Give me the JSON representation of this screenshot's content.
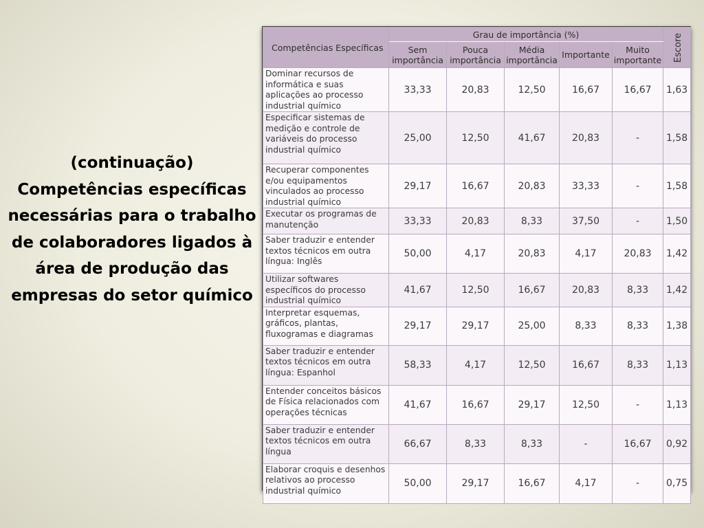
{
  "caption": {
    "continuation": "(continuação)",
    "title": "Competências específicas necessárias para o trabalho de colaboradores ligados à área de produção das empresas do setor químico"
  },
  "table": {
    "header": {
      "competencies": "Competências Específicas",
      "group": "Grau de importância (%)",
      "score": "Escore",
      "levels": [
        "Sem importância",
        "Pouca importância",
        "Média importância",
        "Importante",
        "Muito importante"
      ]
    },
    "rows": [
      {
        "label": "Dominar recursos de informática e suas aplicações ao processo industrial químico",
        "values": [
          "33,33",
          "20,83",
          "12,50",
          "16,67",
          "16,67"
        ],
        "score": "1,63"
      },
      {
        "label": "Especificar sistemas de medição e controle de variáveis do processo industrial químico",
        "values": [
          "25,00",
          "12,50",
          "41,67",
          "20,83",
          "-"
        ],
        "score": "1,58"
      },
      {
        "label": "Recuperar componentes e/ou equipamentos vinculados ao processo industrial químico",
        "values": [
          "29,17",
          "16,67",
          "20,83",
          "33,33",
          "-"
        ],
        "score": "1,58"
      },
      {
        "label": "Executar os programas de manutenção",
        "values": [
          "33,33",
          "20,83",
          "8,33",
          "37,50",
          "-"
        ],
        "score": "1,50"
      },
      {
        "label": "Saber traduzir e entender textos técnicos em outra língua: Inglês",
        "values": [
          "50,00",
          "4,17",
          "20,83",
          "4,17",
          "20,83"
        ],
        "score": "1,42"
      },
      {
        "label": "Utilizar softwares específicos do processo industrial químico",
        "values": [
          "41,67",
          "12,50",
          "16,67",
          "20,83",
          "8,33"
        ],
        "score": "1,42"
      },
      {
        "label": "Interpretar esquemas, gráficos, plantas, fluxogramas e diagramas",
        "values": [
          "29,17",
          "29,17",
          "25,00",
          "8,33",
          "8,33"
        ],
        "score": "1,38"
      },
      {
        "label": "Saber traduzir e entender textos técnicos em outra língua: Espanhol",
        "values": [
          "58,33",
          "4,17",
          "12,50",
          "16,67",
          "8,33"
        ],
        "score": "1,13"
      },
      {
        "label": "Entender conceitos básicos de Física relacionados com operações técnicas",
        "values": [
          "41,67",
          "16,67",
          "29,17",
          "12,50",
          "-"
        ],
        "score": "1,13"
      },
      {
        "label": "Saber traduzir e entender textos técnicos em outra língua",
        "values": [
          "66,67",
          "8,33",
          "8,33",
          "-",
          "16,67"
        ],
        "score": "0,92"
      },
      {
        "label": "Elaborar croquis e desenhos relativos ao processo industrial químico",
        "values": [
          "50,00",
          "29,17",
          "16,67",
          "4,17",
          "-"
        ],
        "score": "0,75"
      }
    ]
  }
}
